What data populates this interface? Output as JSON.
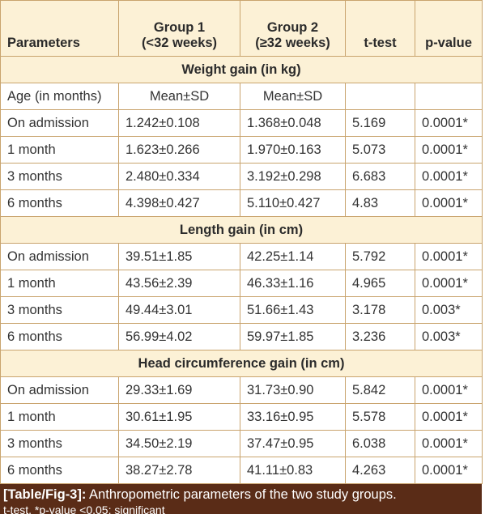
{
  "table": {
    "header": [
      [
        "Parameters"
      ],
      [
        "Group 1",
        "(<32 weeks)"
      ],
      [
        "Group 2",
        "(≥32 weeks)"
      ],
      [
        "t-test"
      ],
      [
        "p-value"
      ]
    ],
    "sections": [
      {
        "title": "Weight gain (in kg)",
        "subheader": [
          "Age (in months)",
          "Mean±SD",
          "Mean±SD"
        ],
        "rows": [
          [
            "On admission",
            "1.242±0.108",
            "1.368±0.048",
            "5.169",
            "0.0001*"
          ],
          [
            "1 month",
            "1.623±0.266",
            "1.970±0.163",
            "5.073",
            "0.0001*"
          ],
          [
            "3 months",
            "2.480±0.334",
            "3.192±0.298",
            "6.683",
            "0.0001*"
          ],
          [
            "6 months",
            "4.398±0.427",
            "5.110±0.427",
            "4.83",
            "0.0001*"
          ]
        ]
      },
      {
        "title": "Length gain (in cm)",
        "rows": [
          [
            "On admission",
            "39.51±1.85",
            "42.25±1.14",
            "5.792",
            "0.0001*"
          ],
          [
            "1 month",
            "43.56±2.39",
            "46.33±1.16",
            "4.965",
            "0.0001*"
          ],
          [
            "3 months",
            "49.44±3.01",
            "51.66±1.43",
            "3.178",
            "0.003*"
          ],
          [
            "6 months",
            "56.99±4.02",
            "59.97±1.85",
            "3.236",
            "0.003*"
          ]
        ]
      },
      {
        "title": "Head circumference gain (in cm)",
        "rows": [
          [
            "On admission",
            "29.33±1.69",
            "31.73±0.90",
            "5.842",
            "0.0001*"
          ],
          [
            "1 month",
            "30.61±1.95",
            "33.16±0.95",
            "5.578",
            "0.0001*"
          ],
          [
            "3 months",
            "34.50±2.19",
            "37.47±0.95",
            "6.038",
            "0.0001*"
          ],
          [
            "6 months",
            "38.27±2.78",
            "41.11±0.83",
            "4.263",
            "0.0001*"
          ]
        ]
      }
    ]
  },
  "caption": {
    "label": "[Table/Fig-3]:",
    "text": "Anthropometric parameters of the two study groups.",
    "note": "t-test, *p-value <0.05: significant"
  }
}
